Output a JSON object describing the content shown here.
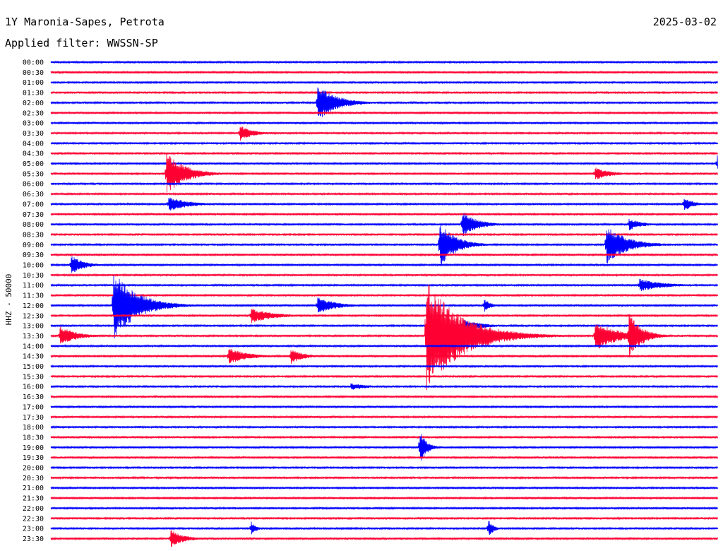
{
  "header": {
    "station": "1Y Maronia-Sapes, Petrota",
    "date": "2025-03-02",
    "filter": "Applied filter: WWSSN-SP"
  },
  "colors": {
    "trace_even": "#0000ff",
    "trace_odd": "#ff0033",
    "text": "#000000"
  },
  "chart_data": {
    "type": "helicorder",
    "ylabel": "HHZ - 50000",
    "row_labels": [
      "00:00",
      "00:30",
      "01:00",
      "01:30",
      "02:00",
      "02:30",
      "03:00",
      "03:30",
      "04:00",
      "04:30",
      "05:00",
      "05:30",
      "06:00",
      "06:30",
      "07:00",
      "07:30",
      "08:00",
      "08:30",
      "09:00",
      "09:30",
      "10:00",
      "10:30",
      "11:00",
      "11:30",
      "12:00",
      "12:30",
      "13:00",
      "13:30",
      "14:00",
      "14:30",
      "15:00",
      "15:30",
      "16:00",
      "16:30",
      "17:00",
      "17:30",
      "18:00",
      "18:30",
      "19:00",
      "19:30",
      "20:00",
      "20:30",
      "21:00",
      "21:30",
      "22:00",
      "22:30",
      "23:00",
      "23:30"
    ],
    "row_minutes": 30,
    "events": [
      {
        "row": "02:00",
        "minute": 12.0,
        "amplitude": 26,
        "duration_min": 1.2
      },
      {
        "row": "03:30",
        "minute": 8.5,
        "amplitude": 12,
        "duration_min": 0.8
      },
      {
        "row": "05:00",
        "minute": 30.0,
        "amplitude": 12,
        "duration_min": 1.0
      },
      {
        "row": "05:30",
        "minute": 5.2,
        "amplitude": 30,
        "duration_min": 1.2
      },
      {
        "row": "05:30",
        "minute": 24.5,
        "amplitude": 9,
        "duration_min": 1.0
      },
      {
        "row": "07:00",
        "minute": 5.3,
        "amplitude": 11,
        "duration_min": 1.2
      },
      {
        "row": "07:00",
        "minute": 28.5,
        "amplitude": 10,
        "duration_min": 0.6
      },
      {
        "row": "08:00",
        "minute": 18.5,
        "amplitude": 18,
        "duration_min": 1.0
      },
      {
        "row": "08:00",
        "minute": 26.0,
        "amplitude": 9,
        "duration_min": 0.8
      },
      {
        "row": "09:00",
        "minute": 17.5,
        "amplitude": 32,
        "duration_min": 1.0
      },
      {
        "row": "09:00",
        "minute": 25.0,
        "amplitude": 28,
        "duration_min": 1.3
      },
      {
        "row": "10:00",
        "minute": 0.9,
        "amplitude": 14,
        "duration_min": 0.8
      },
      {
        "row": "11:00",
        "minute": 26.5,
        "amplitude": 9,
        "duration_min": 1.6
      },
      {
        "row": "12:00",
        "minute": 2.8,
        "amplitude": 50,
        "duration_min": 1.5
      },
      {
        "row": "12:00",
        "minute": 12.0,
        "amplitude": 12,
        "duration_min": 1.2
      },
      {
        "row": "12:00",
        "minute": 19.5,
        "amplitude": 10,
        "duration_min": 0.4
      },
      {
        "row": "12:30",
        "minute": 9.0,
        "amplitude": 11,
        "duration_min": 1.4
      },
      {
        "row": "13:00",
        "minute": 18.5,
        "amplitude": 10,
        "duration_min": 1.2
      },
      {
        "row": "13:30",
        "minute": 0.4,
        "amplitude": 15,
        "duration_min": 1.0
      },
      {
        "row": "13:30",
        "minute": 16.9,
        "amplitude": 80,
        "duration_min": 2.2
      },
      {
        "row": "13:30",
        "minute": 24.5,
        "amplitude": 22,
        "duration_min": 1.4
      },
      {
        "row": "13:30",
        "minute": 26.0,
        "amplitude": 35,
        "duration_min": 0.8
      },
      {
        "row": "14:30",
        "minute": 8.0,
        "amplitude": 12,
        "duration_min": 1.2
      },
      {
        "row": "14:30",
        "minute": 10.8,
        "amplitude": 11,
        "duration_min": 0.8
      },
      {
        "row": "16:00",
        "minute": 13.5,
        "amplitude": 5,
        "duration_min": 1.2
      },
      {
        "row": "19:00",
        "minute": 16.6,
        "amplitude": 28,
        "duration_min": 0.4
      },
      {
        "row": "23:00",
        "minute": 9.0,
        "amplitude": 11,
        "duration_min": 0.3
      },
      {
        "row": "23:00",
        "minute": 19.7,
        "amplitude": 13,
        "duration_min": 0.3
      },
      {
        "row": "23:30",
        "minute": 5.4,
        "amplitude": 13,
        "duration_min": 0.8
      }
    ]
  }
}
